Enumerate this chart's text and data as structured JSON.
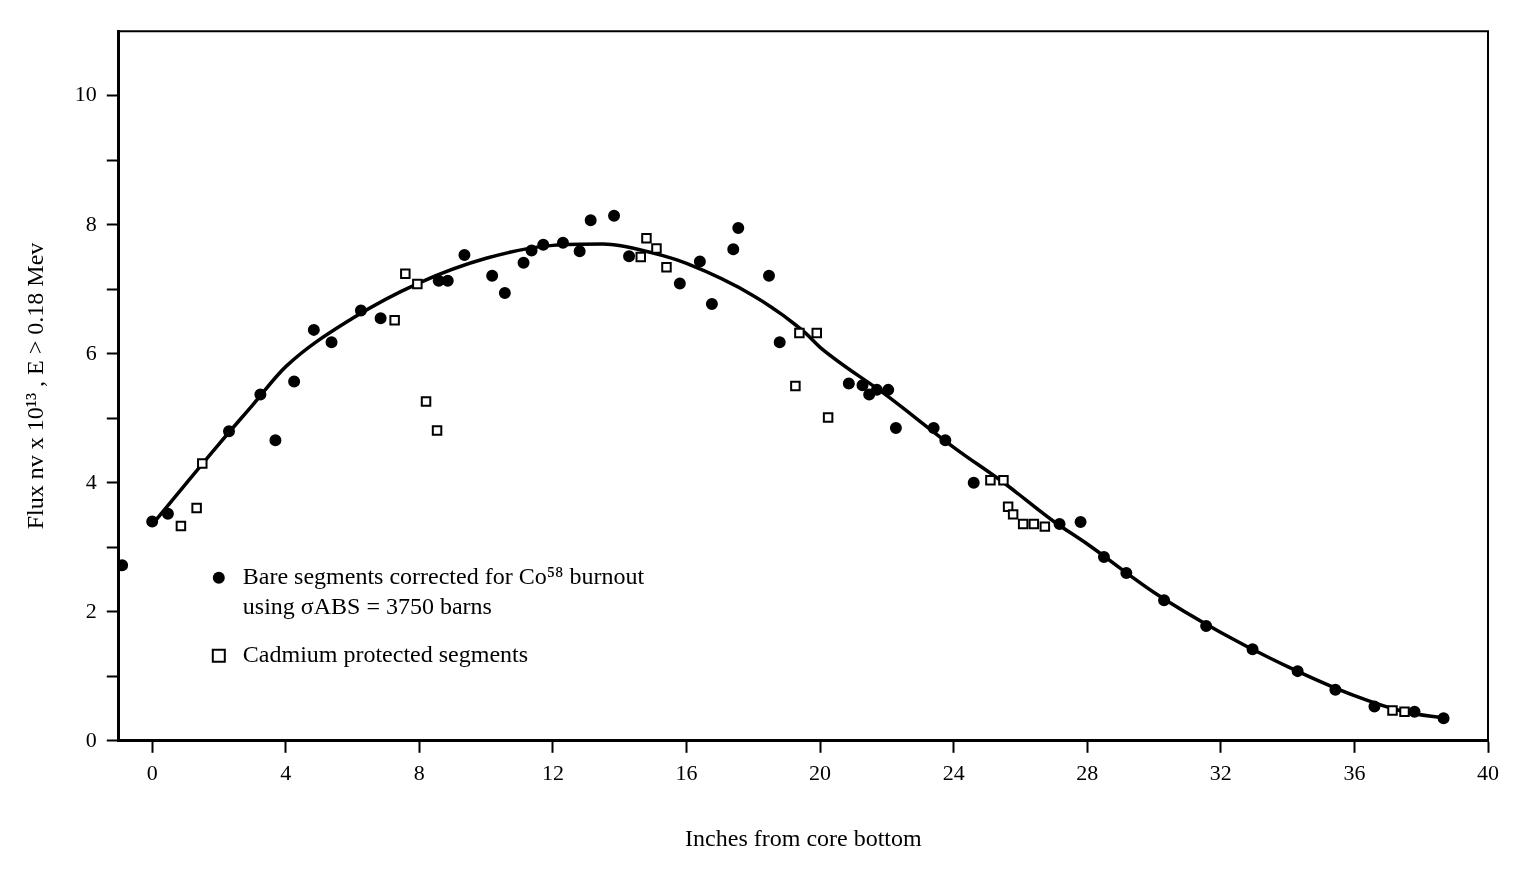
{
  "chart_data": {
    "type": "scatter",
    "xlabel": "Inches from core bottom",
    "ylabel": "Flux nv x 10¹³ , E > 0.18 Mev",
    "xlim": [
      -1,
      40
    ],
    "xticks": [
      0,
      4,
      8,
      12,
      16,
      20,
      24,
      28,
      32,
      36,
      40
    ],
    "ylim": [
      0,
      11
    ],
    "yticks": [
      0,
      {
        "value": 1,
        "label": null
      },
      2,
      {
        "value": 3,
        "label": null
      },
      4,
      {
        "value": 5,
        "label": null
      },
      6,
      {
        "value": 7,
        "label": null
      },
      8,
      {
        "value": 9,
        "label": null
      },
      10
    ],
    "grid": false,
    "legend": "bottom left",
    "series": [
      {
        "name": "Bare segments corrected for Co⁵⁸ burnout\nusing σABS = 3750 barns",
        "type": "scatter",
        "marker": "circle",
        "color": "#000000",
        "x": [
          -0.9,
          0,
          0.47,
          2.3,
          3.24,
          3.69,
          4.25,
          4.84,
          5.37,
          6.25,
          6.84,
          8.58,
          8.85,
          9.35,
          10.18,
          10.56,
          11.12,
          11.36,
          11.71,
          12.3,
          12.8,
          13.13,
          13.83,
          14.28,
          15.8,
          16.4,
          16.76,
          17.4,
          17.55,
          18.47,
          18.79,
          20.86,
          21.27,
          21.47,
          21.7,
          22.04,
          22.27,
          23.4,
          23.75,
          24.6,
          27.17,
          27.8,
          28.5,
          29.17,
          30.3,
          31.56,
          32.95,
          34.3,
          35.43,
          36.6,
          37.8,
          38.67
        ],
        "values": [
          2.72,
          3.4,
          3.52,
          4.8,
          5.37,
          4.66,
          5.57,
          6.37,
          6.18,
          6.67,
          6.55,
          7.13,
          7.13,
          7.53,
          7.21,
          6.94,
          7.41,
          7.6,
          7.69,
          7.72,
          7.59,
          8.07,
          8.14,
          7.51,
          7.09,
          7.43,
          6.77,
          7.62,
          7.95,
          7.21,
          6.18,
          5.54,
          5.51,
          5.37,
          5.44,
          5.44,
          4.85,
          4.85,
          4.66,
          4.0,
          3.36,
          3.39,
          2.85,
          2.6,
          2.18,
          1.78,
          1.42,
          1.08,
          0.79,
          0.53,
          0.45,
          0.35
        ]
      },
      {
        "name": "Cadmium protected segments",
        "type": "scatter",
        "marker": "square",
        "color": "#000000",
        "x": [
          0.86,
          1.33,
          1.5,
          7.26,
          7.58,
          7.94,
          8.2,
          8.53,
          14.63,
          14.8,
          15.1,
          15.4,
          19.26,
          19.38,
          19.9,
          20.24,
          25.1,
          25.49,
          25.63,
          25.78,
          26.08,
          26.4,
          26.73,
          37.14,
          37.5
        ],
        "values": [
          3.33,
          3.61,
          4.3,
          6.52,
          7.24,
          7.08,
          5.26,
          4.81,
          7.5,
          7.79,
          7.63,
          7.34,
          5.5,
          6.32,
          6.32,
          5.01,
          4.04,
          4.04,
          3.63,
          3.51,
          3.36,
          3.36,
          3.32,
          0.47,
          0.45
        ]
      },
      {
        "type": "line",
        "marker": "none",
        "line_style": "solid",
        "color": "#000000",
        "x": [
          0,
          1,
          2,
          3,
          4,
          6,
          8,
          10,
          12,
          13.5,
          15,
          16,
          18,
          19.5,
          20,
          22,
          24,
          25.5,
          27,
          28,
          30,
          32,
          34,
          36,
          37.5,
          38.7
        ],
        "values": [
          3.35,
          3.98,
          4.6,
          5.2,
          5.8,
          6.55,
          7.1,
          7.48,
          7.68,
          7.7,
          7.56,
          7.4,
          6.9,
          6.35,
          6.1,
          5.35,
          4.55,
          4.0,
          3.4,
          3.05,
          2.3,
          1.68,
          1.15,
          0.7,
          0.45,
          0.35
        ]
      }
    ]
  }
}
